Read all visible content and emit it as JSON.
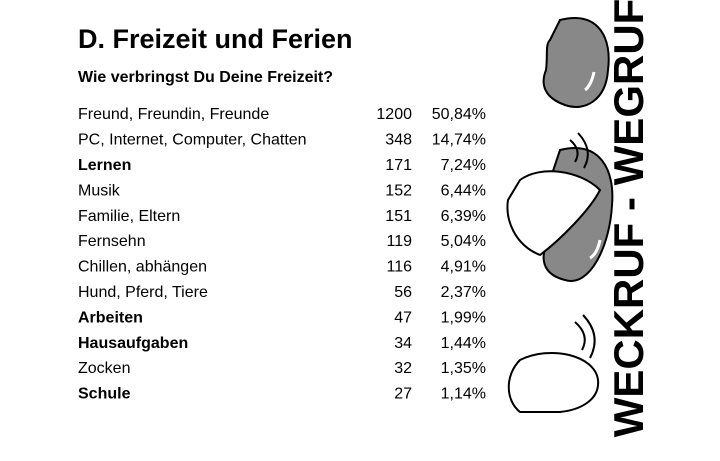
{
  "header": {
    "title": "D. Freizeit und Ferien",
    "subtitle": "Wie verbringst Du Deine Freizeit?"
  },
  "table": {
    "rows": [
      {
        "label": "Freund, Freundin, Freunde",
        "count": 1200,
        "percent": "50,84%",
        "bold": false
      },
      {
        "label": "PC, Internet, Computer, Chatten",
        "count": 348,
        "percent": "14,74%",
        "bold": false
      },
      {
        "label": "Lernen",
        "count": 171,
        "percent": "7,24%",
        "bold": true
      },
      {
        "label": "Musik",
        "count": 152,
        "percent": "6,44%",
        "bold": false
      },
      {
        "label": "Familie, Eltern",
        "count": 151,
        "percent": "6,39%",
        "bold": false
      },
      {
        "label": "Fernsehn",
        "count": 119,
        "percent": "5,04%",
        "bold": false
      },
      {
        "label": "Chillen, abhängen",
        "count": 116,
        "percent": "4,91%",
        "bold": false
      },
      {
        "label": "Hund, Pferd, Tiere",
        "count": 56,
        "percent": "2,37%",
        "bold": false
      },
      {
        "label": "Arbeiten",
        "count": 47,
        "percent": "1,99%",
        "bold": true
      },
      {
        "label": "Hausaufgaben",
        "count": 34,
        "percent": "1,44%",
        "bold": true
      },
      {
        "label": "Zocken",
        "count": 32,
        "percent": "1,35%",
        "bold": false
      },
      {
        "label": "Schule",
        "count": 27,
        "percent": "1,14%",
        "bold": true
      }
    ]
  },
  "logo": {
    "text": "WECKRUF - WEGRUF"
  }
}
